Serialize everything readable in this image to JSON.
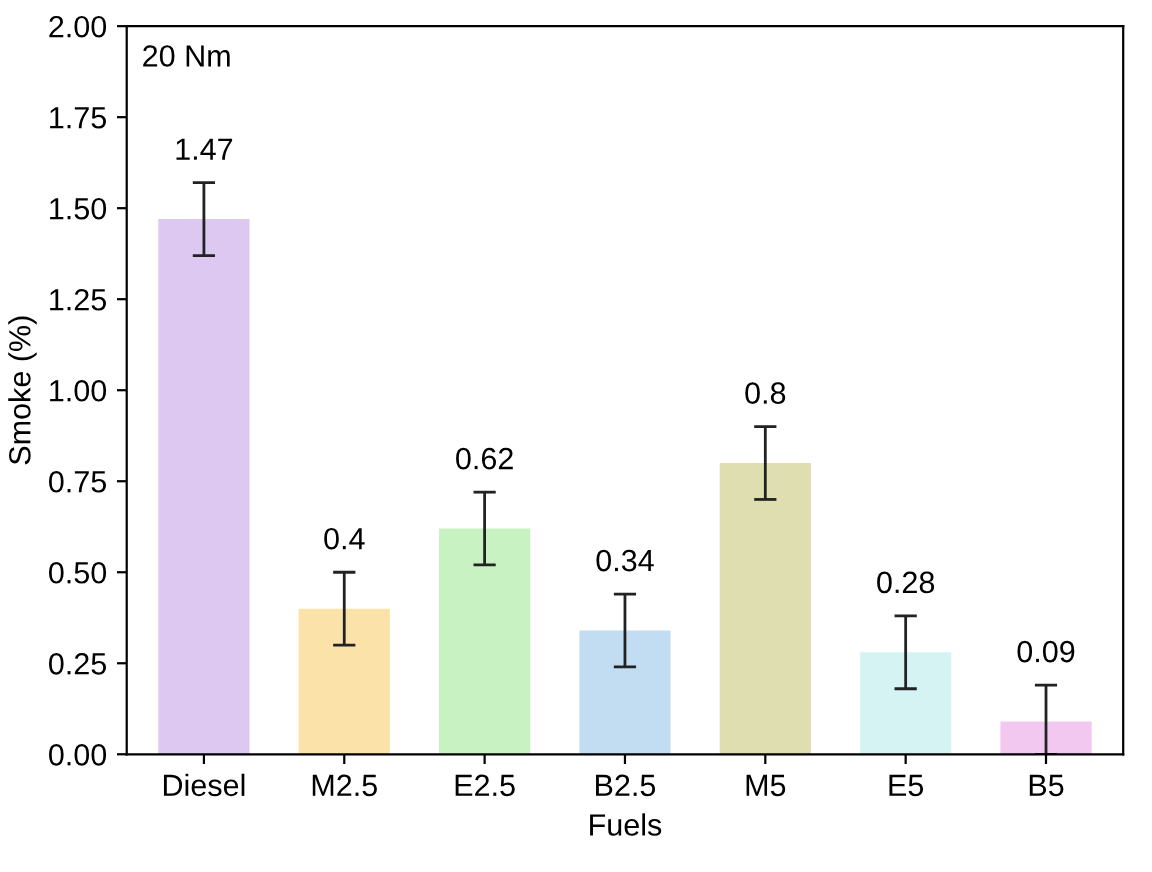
{
  "chart_data": {
    "type": "bar",
    "xlabel": "Fuels",
    "ylabel": "Smoke (%)",
    "annotations": [
      "20 Nm"
    ],
    "categories": [
      "Diesel",
      "M2.5",
      "E2.5",
      "B2.5",
      "M5",
      "E5",
      "B5"
    ],
    "values": [
      1.47,
      0.4,
      0.62,
      0.34,
      0.8,
      0.28,
      0.09
    ],
    "colors": [
      "#dcc8f0",
      "#fbe2a8",
      "#c9f2c2",
      "#c2dcf2",
      "#dfdeb0",
      "#d6f3f3",
      "#f3c8f0"
    ],
    "errors": [
      [
        1.37,
        1.57
      ],
      [
        0.3,
        0.5
      ],
      [
        0.52,
        0.72
      ],
      [
        0.24,
        0.44
      ],
      [
        0.7,
        0.9
      ],
      [
        0.18,
        0.38
      ],
      [
        0,
        0.19
      ]
    ],
    "data_labels": true,
    "ylim": [
      0,
      2.0
    ],
    "yticks": [
      {
        "value": 0,
        "label": "0.00"
      },
      {
        "value": 0.25,
        "label": "0.25"
      },
      {
        "value": 0.5,
        "label": "0.50"
      },
      {
        "value": 0.75,
        "label": "0.75"
      },
      {
        "value": 1.0,
        "label": "1.00"
      },
      {
        "value": 1.25,
        "label": "1.25"
      },
      {
        "value": 1.5,
        "label": "1.50"
      },
      {
        "value": 1.75,
        "label": "1.75"
      },
      {
        "value": 2.0,
        "label": "2.00"
      }
    ],
    "grid": false,
    "legend": false
  }
}
